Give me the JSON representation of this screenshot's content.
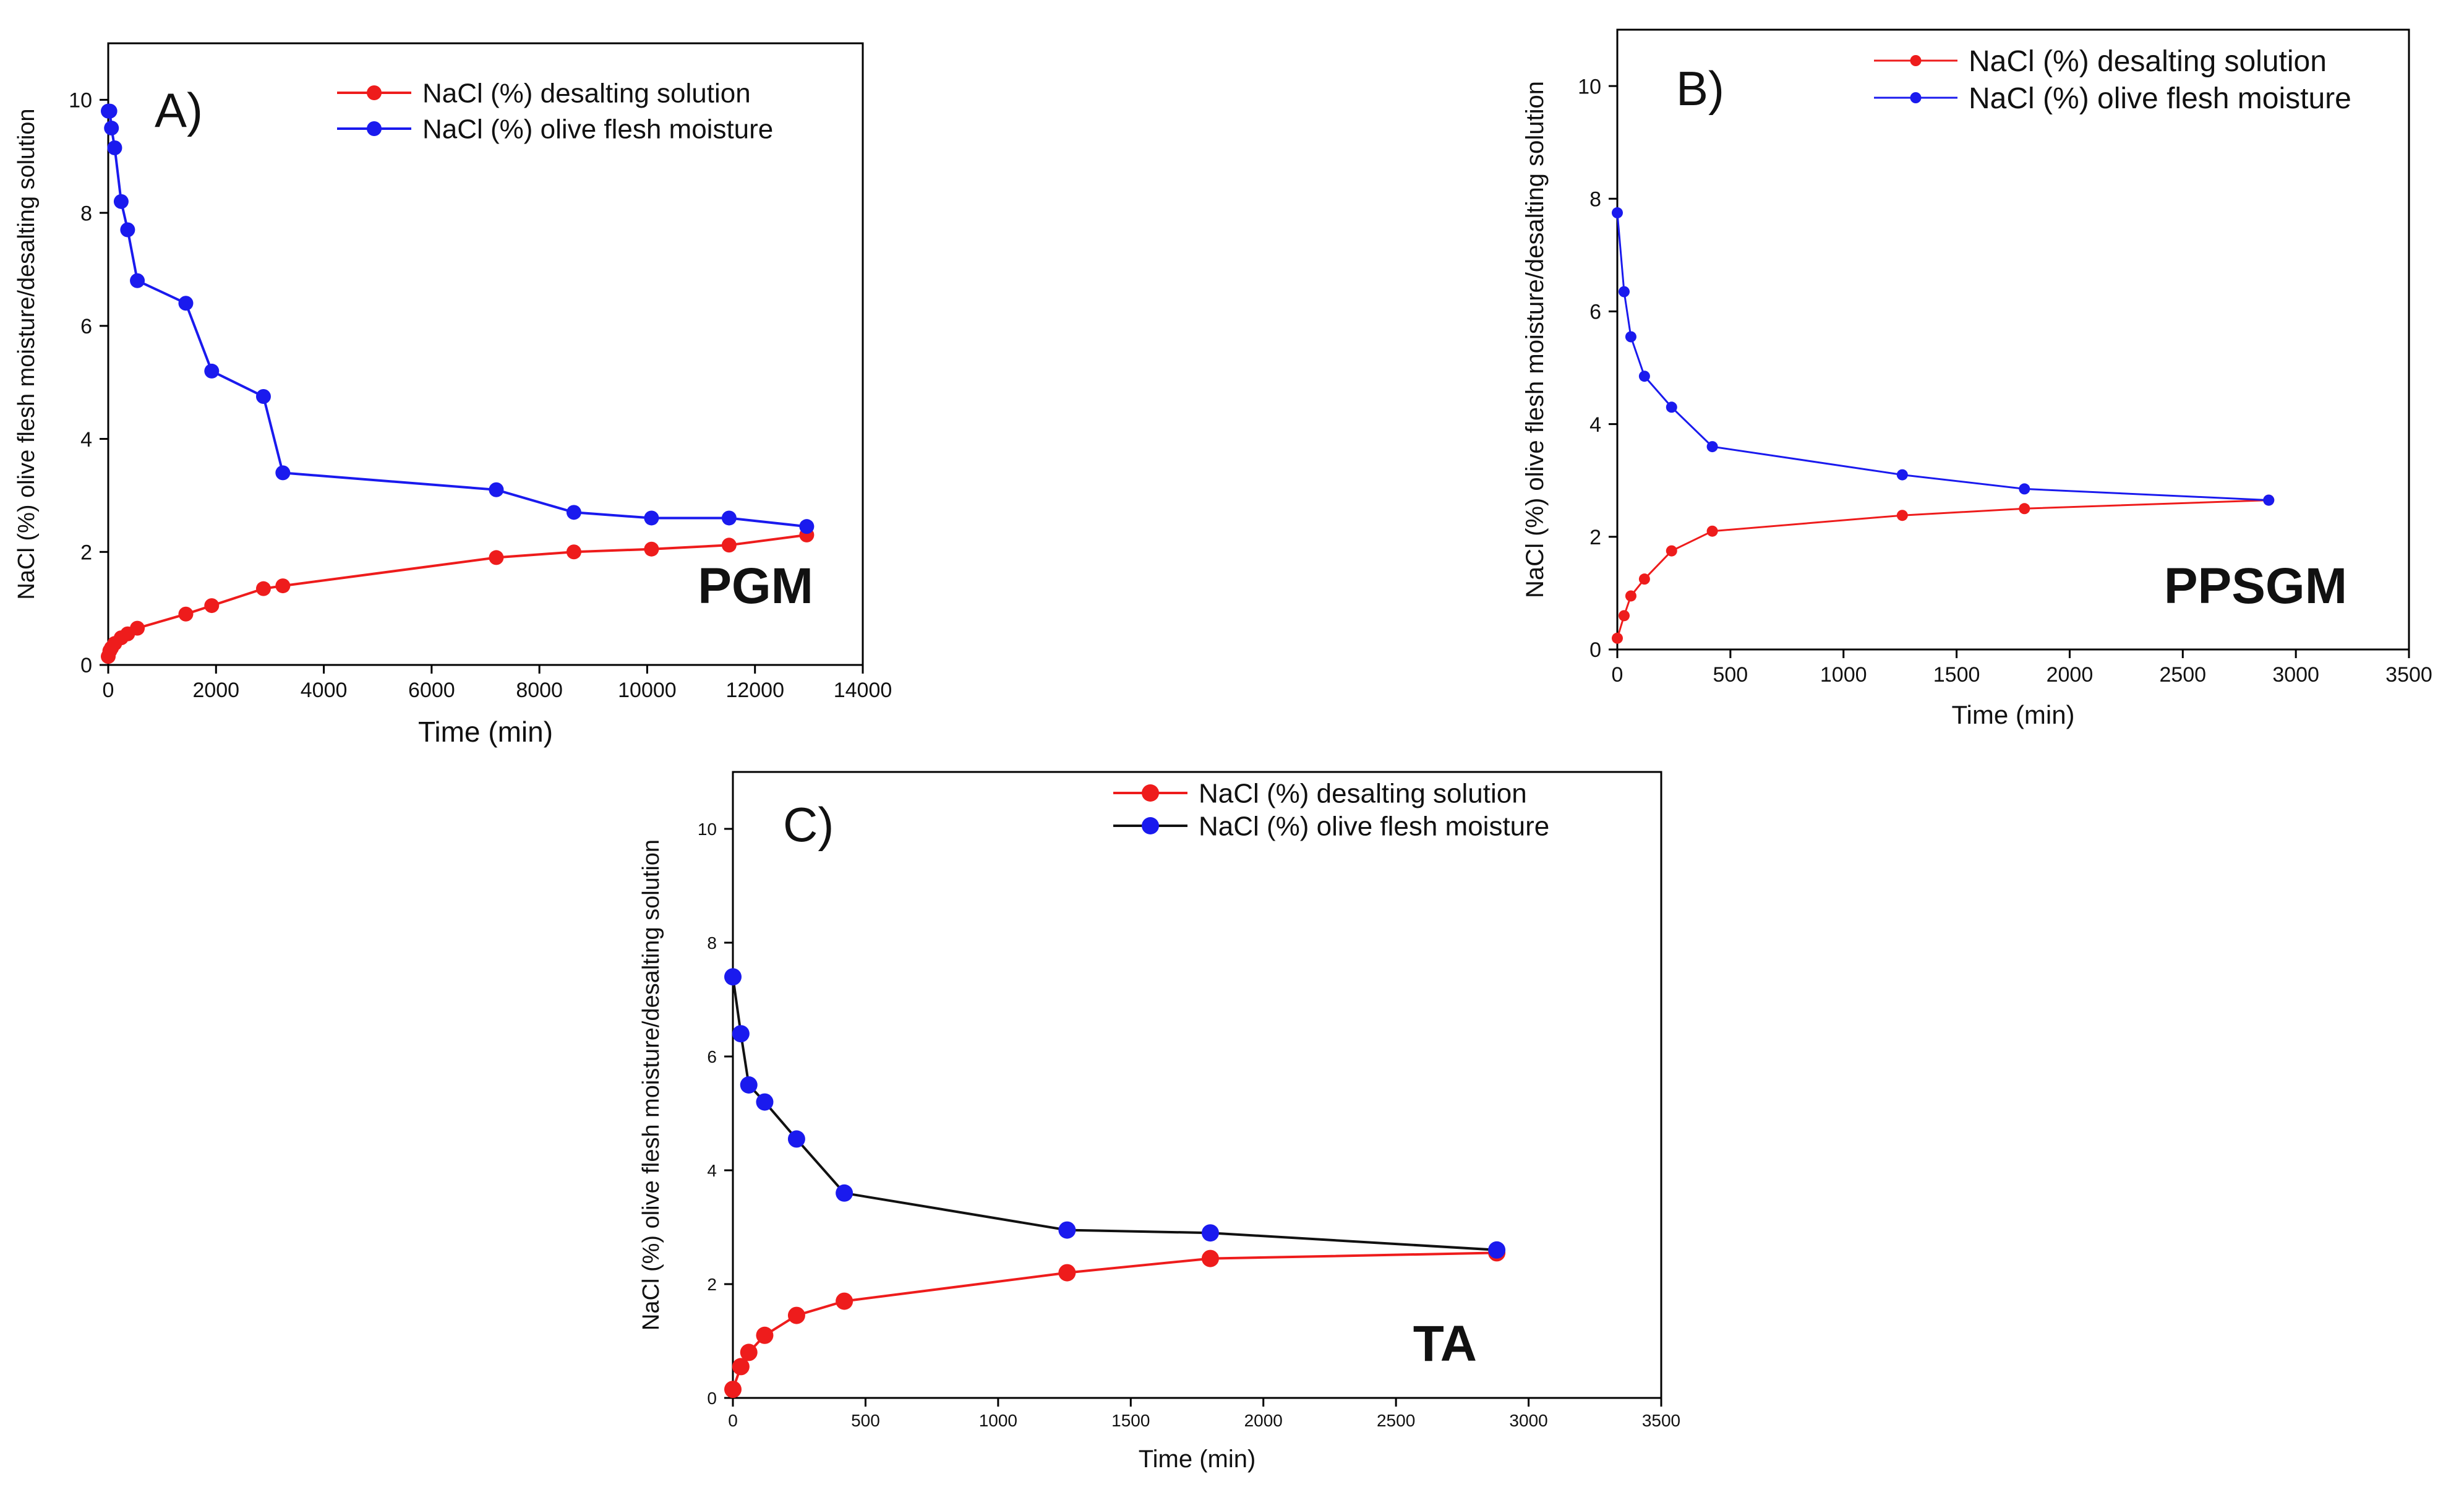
{
  "figure": {
    "panels": [
      "PGM",
      "PPSGM",
      "TA"
    ]
  },
  "chart_data": [
    {
      "type": "line",
      "panel_label": "A)",
      "group_label": "PGM",
      "xlabel": "Time (min)",
      "ylabel": "NaCl (%) olive flesh moisture/desalting solution",
      "xlim": [
        0,
        14000
      ],
      "ylim": [
        0,
        11
      ],
      "xticks": [
        0,
        2000,
        4000,
        6000,
        8000,
        10000,
        12000,
        14000
      ],
      "yticks": [
        0,
        2,
        4,
        6,
        8,
        10
      ],
      "legend_position": "top-right",
      "series": [
        {
          "name": "NaCl (%) desalting solution",
          "color": "#ee1c1c",
          "line_color": "#ee1c1c",
          "x": [
            0,
            30,
            60,
            120,
            240,
            360,
            540,
            1440,
            1920,
            2880,
            3240,
            7200,
            8640,
            10080,
            11520,
            12960
          ],
          "y": [
            0.15,
            0.25,
            0.3,
            0.38,
            0.48,
            0.55,
            0.65,
            0.9,
            1.05,
            1.35,
            1.4,
            1.9,
            2.0,
            2.05,
            2.12,
            2.3
          ]
        },
        {
          "name": "NaCl (%) olive flesh moisture",
          "color": "#1a1aee",
          "line_color": "#1a1aee",
          "x": [
            0,
            30,
            60,
            120,
            240,
            360,
            540,
            1440,
            1920,
            2880,
            3240,
            7200,
            8640,
            10080,
            11520,
            12960
          ],
          "y": [
            9.8,
            9.8,
            9.5,
            9.15,
            8.2,
            7.7,
            6.8,
            6.4,
            5.2,
            4.75,
            3.4,
            3.1,
            2.7,
            2.6,
            2.6,
            2.45
          ]
        }
      ]
    },
    {
      "type": "line",
      "panel_label": "B)",
      "group_label": "PPSGM",
      "xlabel": "Time (min)",
      "ylabel": "NaCl (%) olive flesh moisture/desalting solution",
      "xlim": [
        0,
        3500
      ],
      "ylim": [
        0,
        11
      ],
      "xticks": [
        0,
        500,
        1000,
        1500,
        2000,
        2500,
        3000,
        3500
      ],
      "yticks": [
        0,
        2,
        4,
        6,
        8,
        10
      ],
      "legend_position": "top-right",
      "series": [
        {
          "name": "NaCl (%) desalting solution",
          "color": "#ee1c1c",
          "line_color": "#ee1c1c",
          "x": [
            0,
            30,
            60,
            120,
            240,
            420,
            1260,
            1800,
            2880
          ],
          "y": [
            0.2,
            0.6,
            0.95,
            1.25,
            1.75,
            2.1,
            2.38,
            2.5,
            2.65
          ]
        },
        {
          "name": "NaCl (%) olive flesh moisture",
          "color": "#1a1aee",
          "line_color": "#1a1aee",
          "x": [
            0,
            30,
            60,
            120,
            240,
            420,
            1260,
            1800,
            2880
          ],
          "y": [
            7.75,
            6.35,
            5.55,
            4.85,
            4.3,
            3.6,
            3.1,
            2.85,
            2.65
          ]
        }
      ]
    },
    {
      "type": "line",
      "panel_label": "C)",
      "group_label": "TA",
      "xlabel": "Time (min)",
      "ylabel": "NaCl (%) olive flesh moisture/desalting solution",
      "xlim": [
        0,
        3500
      ],
      "ylim": [
        0,
        11
      ],
      "xticks": [
        0,
        500,
        1000,
        1500,
        2000,
        2500,
        3000,
        3500
      ],
      "yticks": [
        0,
        2,
        4,
        6,
        8,
        10
      ],
      "legend_position": "top-right",
      "series": [
        {
          "name": "NaCl (%) desalting solution",
          "color": "#ee1c1c",
          "line_color": "#ee1c1c",
          "x": [
            0,
            30,
            60,
            120,
            240,
            420,
            1260,
            1800,
            2880
          ],
          "y": [
            0.15,
            0.55,
            0.8,
            1.1,
            1.45,
            1.7,
            2.2,
            2.45,
            2.55
          ]
        },
        {
          "name": "NaCl (%) olive flesh moisture",
          "color": "#1a1aee",
          "line_color": "#111111",
          "x": [
            0,
            30,
            60,
            120,
            240,
            420,
            1260,
            1800,
            2880
          ],
          "y": [
            7.4,
            6.4,
            5.5,
            5.2,
            4.55,
            3.6,
            2.95,
            2.9,
            2.6
          ]
        }
      ]
    }
  ]
}
